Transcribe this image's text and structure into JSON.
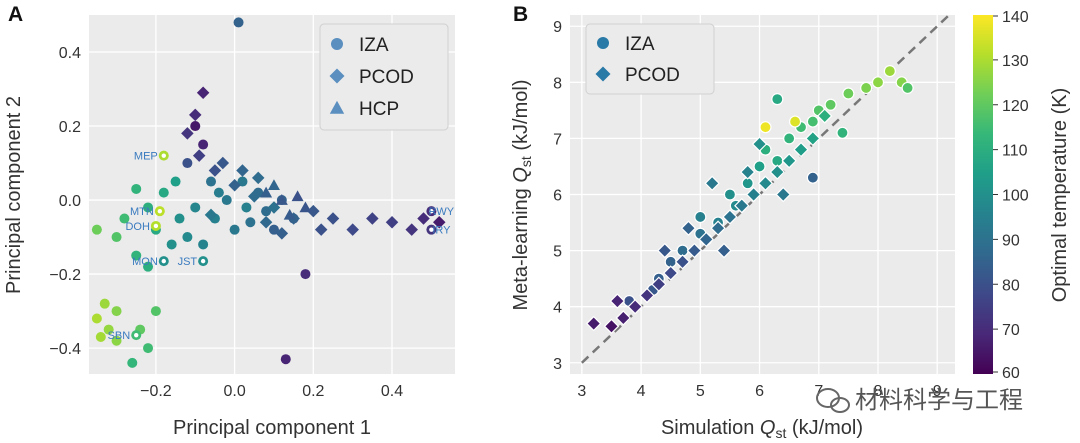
{
  "chart_data": [
    {
      "panel": "A",
      "type": "scatter",
      "xlabel": "Principal component 1",
      "ylabel": "Principal component 2",
      "xlim": [
        -0.37,
        0.56
      ],
      "ylim": [
        -0.47,
        0.5
      ],
      "xticks": [
        -0.2,
        0.0,
        0.2,
        0.4
      ],
      "yticks": [
        -0.4,
        -0.2,
        0.0,
        0.2,
        0.4
      ],
      "xtick_labels": [
        "−0.2",
        "0.0",
        "0.2",
        "0.4"
      ],
      "ytick_labels": [
        "−0.4",
        "−0.2",
        "0.0",
        "0.2",
        "0.4"
      ],
      "grid": true,
      "legend_position": "top-right",
      "legend": [
        {
          "label": "IZA",
          "marker": "circle"
        },
        {
          "label": "PCOD",
          "marker": "diamond"
        },
        {
          "label": "HCP",
          "marker": "triangle"
        }
      ],
      "legend_color": "#5b8fc0",
      "annotations": [
        {
          "text": "MEP",
          "x": -0.18,
          "y": 0.12
        },
        {
          "text": "MTN",
          "x": -0.19,
          "y": -0.03
        },
        {
          "text": "DOH",
          "x": -0.2,
          "y": -0.07
        },
        {
          "text": "MON",
          "x": -0.18,
          "y": -0.165
        },
        {
          "text": "JST",
          "x": -0.08,
          "y": -0.165
        },
        {
          "text": "SBN",
          "x": -0.25,
          "y": -0.365
        },
        {
          "text": "RWY",
          "x": 0.5,
          "y": -0.03
        },
        {
          "text": "IRY",
          "x": 0.5,
          "y": -0.08
        }
      ],
      "series": [
        {
          "marker": "circle",
          "points": [
            [
              0.01,
              0.48
            ],
            [
              -0.1,
              0.2
            ],
            [
              -0.08,
              0.15
            ],
            [
              -0.12,
              0.1
            ],
            [
              -0.06,
              0.05
            ],
            [
              -0.02,
              0.0
            ],
            [
              0.03,
              -0.02
            ],
            [
              0.06,
              0.02
            ],
            [
              -0.15,
              0.05
            ],
            [
              -0.18,
              0.02
            ],
            [
              -0.22,
              -0.02
            ],
            [
              -0.25,
              0.03
            ],
            [
              -0.28,
              -0.05
            ],
            [
              -0.3,
              -0.1
            ],
            [
              -0.33,
              -0.28
            ],
            [
              -0.35,
              -0.32
            ],
            [
              -0.32,
              -0.35
            ],
            [
              -0.3,
              -0.38
            ],
            [
              -0.34,
              -0.37
            ],
            [
              -0.3,
              -0.3
            ],
            [
              -0.25,
              -0.15
            ],
            [
              -0.22,
              -0.18
            ],
            [
              -0.24,
              -0.35
            ],
            [
              -0.2,
              -0.3
            ],
            [
              -0.22,
              -0.4
            ],
            [
              -0.26,
              -0.44
            ],
            [
              -0.35,
              -0.08
            ],
            [
              -0.2,
              -0.08
            ],
            [
              -0.14,
              -0.05
            ],
            [
              -0.1,
              -0.02
            ],
            [
              -0.05,
              -0.05
            ],
            [
              0.0,
              -0.08
            ],
            [
              0.04,
              -0.06
            ],
            [
              0.08,
              -0.03
            ],
            [
              0.12,
              0.0
            ],
            [
              0.15,
              -0.05
            ],
            [
              0.18,
              -0.2
            ],
            [
              0.13,
              -0.43
            ],
            [
              -0.16,
              -0.12
            ],
            [
              -0.12,
              -0.1
            ],
            [
              -0.08,
              -0.12
            ],
            [
              -0.04,
              0.02
            ],
            [
              0.02,
              0.05
            ],
            [
              0.1,
              -0.08
            ],
            [
              -0.18,
              0.12
            ],
            [
              -0.19,
              -0.03
            ],
            [
              -0.2,
              -0.07
            ],
            [
              -0.18,
              -0.165
            ],
            [
              -0.08,
              -0.165
            ],
            [
              -0.25,
              -0.365
            ],
            [
              0.5,
              -0.03
            ],
            [
              0.5,
              -0.08
            ]
          ],
          "temps": [
            85,
            65,
            68,
            80,
            90,
            92,
            95,
            88,
            105,
            108,
            110,
            112,
            115,
            118,
            128,
            130,
            127,
            126,
            129,
            125,
            112,
            110,
            120,
            118,
            115,
            113,
            122,
            108,
            100,
            97,
            95,
            92,
            90,
            88,
            85,
            82,
            70,
            68,
            100,
            98,
            96,
            94,
            92,
            84,
            130,
            132,
            131,
            100,
            100,
            115,
            70,
            72
          ]
        },
        {
          "marker": "diamond",
          "points": [
            [
              -0.08,
              0.29
            ],
            [
              -0.1,
              0.23
            ],
            [
              -0.12,
              0.18
            ],
            [
              -0.09,
              0.12
            ],
            [
              -0.05,
              0.08
            ],
            [
              0.0,
              0.04
            ],
            [
              0.05,
              0.01
            ],
            [
              0.1,
              -0.02
            ],
            [
              0.15,
              -0.05
            ],
            [
              0.2,
              -0.03
            ],
            [
              0.25,
              -0.05
            ],
            [
              0.3,
              -0.08
            ],
            [
              0.35,
              -0.05
            ],
            [
              0.4,
              -0.06
            ],
            [
              0.45,
              -0.08
            ],
            [
              0.48,
              -0.05
            ],
            [
              0.52,
              -0.06
            ],
            [
              0.22,
              -0.08
            ],
            [
              -0.03,
              0.1
            ],
            [
              0.02,
              0.08
            ],
            [
              0.06,
              0.06
            ],
            [
              0.08,
              -0.06
            ],
            [
              0.12,
              -0.09
            ],
            [
              -0.06,
              -0.04
            ]
          ],
          "temps": [
            68,
            70,
            72,
            75,
            80,
            85,
            88,
            90,
            85,
            82,
            80,
            78,
            76,
            75,
            72,
            70,
            66,
            80,
            82,
            86,
            88,
            87,
            84,
            92
          ]
        },
        {
          "marker": "triangle",
          "points": [
            [
              0.08,
              0.02
            ],
            [
              0.12,
              0.0
            ],
            [
              0.16,
              0.01
            ],
            [
              0.14,
              -0.04
            ],
            [
              0.1,
              0.04
            ],
            [
              0.18,
              -0.02
            ]
          ],
          "temps": [
            84,
            82,
            80,
            83,
            86,
            81
          ]
        }
      ]
    },
    {
      "panel": "B",
      "type": "scatter",
      "xlabel_text": "Simulation",
      "xlabel_sub": "st",
      "xlabel_unit": "(kJ/mol)",
      "ylabel_text": "Meta-learning",
      "ylabel_sub": "st",
      "ylabel_unit": "(kJ/mol)",
      "q_symbol": "Q",
      "xlim": [
        2.8,
        9.3
      ],
      "ylim": [
        2.8,
        9.2
      ],
      "xticks": [
        3,
        4,
        5,
        6,
        7,
        8,
        9
      ],
      "yticks": [
        3,
        4,
        5,
        6,
        7,
        8,
        9
      ],
      "xtick_labels": [
        "3",
        "4",
        "5",
        "6",
        "7",
        "8",
        "9"
      ],
      "ytick_labels": [
        "3",
        "4",
        "5",
        "6",
        "7",
        "8",
        "9"
      ],
      "grid": true,
      "diagonal": true,
      "legend_position": "top-left",
      "legend": [
        {
          "label": "IZA",
          "marker": "circle"
        },
        {
          "label": "PCOD",
          "marker": "diamond"
        }
      ],
      "legend_color": "#2a7aa8",
      "series": [
        {
          "marker": "circle",
          "points": [
            [
              3.8,
              4.1
            ],
            [
              4.2,
              4.3
            ],
            [
              4.5,
              4.8
            ],
            [
              4.7,
              5.0
            ],
            [
              5.0,
              5.6
            ],
            [
              5.1,
              5.2
            ],
            [
              5.3,
              5.5
            ],
            [
              5.5,
              6.0
            ],
            [
              5.6,
              5.8
            ],
            [
              5.8,
              6.2
            ],
            [
              6.0,
              6.5
            ],
            [
              6.1,
              6.8
            ],
            [
              6.3,
              6.6
            ],
            [
              6.5,
              7.0
            ],
            [
              6.7,
              7.2
            ],
            [
              6.9,
              7.3
            ],
            [
              7.0,
              7.5
            ],
            [
              7.2,
              7.6
            ],
            [
              7.5,
              7.8
            ],
            [
              7.8,
              7.9
            ],
            [
              8.0,
              8.0
            ],
            [
              8.2,
              8.2
            ],
            [
              8.4,
              8.0
            ],
            [
              8.5,
              7.9
            ],
            [
              6.1,
              7.2
            ],
            [
              6.6,
              7.3
            ],
            [
              6.9,
              6.3
            ],
            [
              5.0,
              5.3
            ],
            [
              4.3,
              4.5
            ],
            [
              7.4,
              7.1
            ],
            [
              6.3,
              7.7
            ]
          ],
          "temps": [
            80,
            82,
            85,
            88,
            95,
            92,
            95,
            100,
            98,
            102,
            105,
            110,
            108,
            112,
            115,
            116,
            118,
            120,
            122,
            124,
            126,
            128,
            125,
            118,
            138,
            136,
            85,
            90,
            84,
            112,
            108
          ]
        },
        {
          "marker": "diamond",
          "points": [
            [
              3.2,
              3.7
            ],
            [
              3.5,
              3.65
            ],
            [
              3.7,
              3.8
            ],
            [
              3.9,
              4.0
            ],
            [
              4.1,
              4.2
            ],
            [
              4.3,
              4.4
            ],
            [
              4.5,
              4.6
            ],
            [
              4.7,
              4.8
            ],
            [
              4.9,
              5.0
            ],
            [
              5.1,
              5.2
            ],
            [
              5.3,
              5.4
            ],
            [
              5.5,
              5.6
            ],
            [
              5.7,
              5.8
            ],
            [
              5.9,
              6.0
            ],
            [
              6.1,
              6.2
            ],
            [
              6.3,
              6.4
            ],
            [
              6.5,
              6.6
            ],
            [
              6.7,
              6.8
            ],
            [
              6.9,
              7.0
            ],
            [
              5.2,
              6.2
            ],
            [
              5.8,
              6.4
            ],
            [
              4.4,
              5.0
            ],
            [
              4.8,
              5.4
            ],
            [
              6.0,
              6.9
            ],
            [
              7.1,
              7.4
            ],
            [
              3.6,
              4.1
            ],
            [
              5.4,
              5.0
            ],
            [
              6.4,
              6.0
            ]
          ],
          "temps": [
            66,
            64,
            67,
            70,
            72,
            75,
            78,
            80,
            83,
            86,
            88,
            90,
            92,
            95,
            98,
            100,
            102,
            104,
            106,
            92,
            96,
            82,
            85,
            100,
            110,
            68,
            84,
            92
          ]
        }
      ],
      "colorbar": {
        "label": "Optimal temperature (K)",
        "range": [
          60,
          140
        ],
        "ticks": [
          60,
          70,
          80,
          90,
          100,
          110,
          120,
          130,
          140
        ],
        "tick_labels": [
          "60",
          "70",
          "80",
          "90",
          "100",
          "110",
          "120",
          "130",
          "140"
        ],
        "colormap": [
          "#440154",
          "#482878",
          "#3e4989",
          "#31688e",
          "#26828e",
          "#1f9e89",
          "#35b779",
          "#6ece58",
          "#b5de2b",
          "#fde725"
        ]
      }
    }
  ],
  "panel_labels": {
    "a": "A",
    "b": "B"
  },
  "watermark": "材料科学与工程",
  "colors": {
    "plot_bg": "#ebebeb",
    "grid": "#ffffff",
    "diagonal": "#777777"
  }
}
